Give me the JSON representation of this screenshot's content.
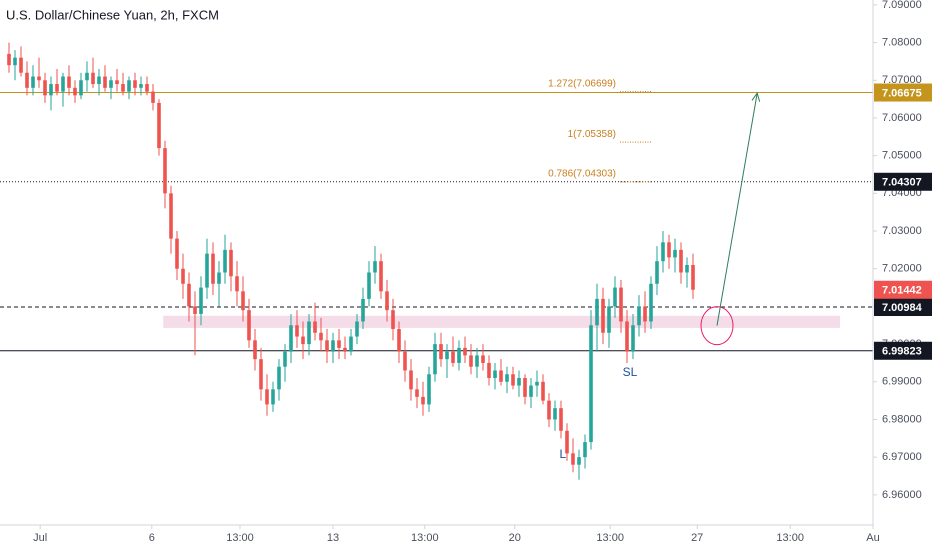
{
  "chart_data": {
    "type": "candlestick",
    "title": "U.S. Dollar/Chinese Yuan, 2h, FXCM",
    "up_color": "#26a69a",
    "down_color": "#ef5350",
    "grid": false,
    "ylim": [
      6.952,
      7.0913
    ],
    "yticks": [
      {
        "value": 7.09,
        "label": "7.09000"
      },
      {
        "value": 7.08,
        "label": "7.08000"
      },
      {
        "value": 7.07,
        "label": "7.07000"
      },
      {
        "value": 7.06,
        "label": "7.06000"
      },
      {
        "value": 7.05,
        "label": "7.05000"
      },
      {
        "value": 7.04,
        "label": "7.04000"
      },
      {
        "value": 7.03,
        "label": "7.03000"
      },
      {
        "value": 7.02,
        "label": "7.02000"
      },
      {
        "value": 7.01,
        "label": "7.01000"
      },
      {
        "value": 7.0,
        "label": "7.00000"
      },
      {
        "value": 6.99,
        "label": "6.99000"
      },
      {
        "value": 6.98,
        "label": "6.98000"
      },
      {
        "value": 6.97,
        "label": "6.97000"
      },
      {
        "value": 6.96,
        "label": "6.96000"
      }
    ],
    "xlim": [
      -1.5,
      144
    ],
    "xticks": [
      {
        "value": 5.2,
        "label": "Jul"
      },
      {
        "value": 23.8,
        "label": "6"
      },
      {
        "value": 38.5,
        "label": "13:00"
      },
      {
        "value": 54,
        "label": "13"
      },
      {
        "value": 69.3,
        "label": "13:00"
      },
      {
        "value": 84.3,
        "label": "20"
      },
      {
        "value": 100.2,
        "label": "13:00"
      },
      {
        "value": 114.7,
        "label": "27"
      },
      {
        "value": 130.2,
        "label": "13:00"
      },
      {
        "value": 144,
        "label": "Au"
      }
    ],
    "ohlc": [
      [
        7.077,
        7.08,
        7.072,
        7.074
      ],
      [
        7.074,
        7.078,
        7.07,
        7.076
      ],
      [
        7.076,
        7.079,
        7.071,
        7.072
      ],
      [
        7.072,
        7.075,
        7.066,
        7.068
      ],
      [
        7.068,
        7.074,
        7.066,
        7.071
      ],
      [
        7.071,
        7.076,
        7.068,
        7.07
      ],
      [
        7.07,
        7.072,
        7.064,
        7.066
      ],
      [
        7.066,
        7.071,
        7.062,
        7.069
      ],
      [
        7.069,
        7.073,
        7.066,
        7.067
      ],
      [
        7.067,
        7.072,
        7.063,
        7.071
      ],
      [
        7.071,
        7.074,
        7.066,
        7.068
      ],
      [
        7.068,
        7.07,
        7.064,
        7.066
      ],
      [
        7.066,
        7.072,
        7.065,
        7.07
      ],
      [
        7.07,
        7.075,
        7.067,
        7.072
      ],
      [
        7.072,
        7.076,
        7.068,
        7.069
      ],
      [
        7.069,
        7.073,
        7.066,
        7.071
      ],
      [
        7.071,
        7.074,
        7.067,
        7.068
      ],
      [
        7.068,
        7.071,
        7.065,
        7.07
      ],
      [
        7.07,
        7.073,
        7.067,
        7.069
      ],
      [
        7.069,
        7.072,
        7.066,
        7.067
      ],
      [
        7.067,
        7.071,
        7.065,
        7.07
      ],
      [
        7.07,
        7.072,
        7.066,
        7.068
      ],
      [
        7.068,
        7.071,
        7.066,
        7.069
      ],
      [
        7.069,
        7.071,
        7.066,
        7.067
      ],
      [
        7.067,
        7.069,
        7.062,
        7.064
      ],
      [
        7.064,
        7.065,
        7.05,
        7.052
      ],
      [
        7.052,
        7.054,
        7.036,
        7.04
      ],
      [
        7.04,
        7.042,
        7.024,
        7.028
      ],
      [
        7.028,
        7.03,
        7.017,
        7.02
      ],
      [
        7.02,
        7.024,
        7.012,
        7.016
      ],
      [
        7.016,
        7.019,
        7.006,
        7.01
      ],
      [
        7.01,
        7.014,
        6.997,
        7.008
      ],
      [
        7.008,
        7.018,
        7.005,
        7.015
      ],
      [
        7.015,
        7.028,
        7.012,
        7.024
      ],
      [
        7.024,
        7.027,
        7.013,
        7.016
      ],
      [
        7.016,
        7.022,
        7.01,
        7.019
      ],
      [
        7.019,
        7.029,
        7.016,
        7.025
      ],
      [
        7.025,
        7.027,
        7.014,
        7.018
      ],
      [
        7.018,
        7.022,
        7.01,
        7.014
      ],
      [
        7.014,
        7.018,
        7.006,
        7.009
      ],
      [
        7.009,
        7.012,
        6.999,
        7.001
      ],
      [
        7.001,
        7.004,
        6.993,
        6.996
      ],
      [
        6.996,
        6.999,
        6.985,
        6.988
      ],
      [
        6.988,
        6.992,
        6.981,
        6.984
      ],
      [
        6.984,
        6.99,
        6.982,
        6.988
      ],
      [
        6.988,
        6.996,
        6.985,
        6.994
      ],
      [
        6.994,
        7.0,
        6.99,
        6.998
      ],
      [
        6.998,
        7.008,
        6.995,
        7.005
      ],
      [
        7.005,
        7.009,
        6.999,
        7.002
      ],
      [
        7.002,
        7.006,
        6.996,
        7.0
      ],
      [
        7.0,
        7.008,
        6.997,
        7.006
      ],
      [
        7.006,
        7.011,
        7.001,
        7.003
      ],
      [
        7.003,
        7.007,
        6.998,
        7.001
      ],
      [
        7.001,
        7.004,
        6.995,
        6.998
      ],
      [
        6.998,
        7.003,
        6.995,
        7.001
      ],
      [
        7.001,
        7.004,
        6.996,
        6.999
      ],
      [
        6.999,
        7.002,
        6.996,
        6.998
      ],
      [
        6.998,
        7.004,
        6.997,
        7.002
      ],
      [
        7.002,
        7.008,
        7.0,
        7.006
      ],
      [
        7.006,
        7.015,
        7.004,
        7.012
      ],
      [
        7.012,
        7.022,
        7.01,
        7.019
      ],
      [
        7.019,
        7.026,
        7.016,
        7.022
      ],
      [
        7.022,
        7.024,
        7.012,
        7.014
      ],
      [
        7.014,
        7.017,
        7.006,
        7.009
      ],
      [
        7.009,
        7.012,
        7.001,
        7.004
      ],
      [
        7.004,
        7.006,
        6.995,
        6.998
      ],
      [
        6.998,
        7.001,
        6.99,
        6.993
      ],
      [
        6.993,
        6.996,
        6.985,
        6.988
      ],
      [
        6.988,
        6.991,
        6.983,
        6.986
      ],
      [
        6.986,
        6.99,
        6.981,
        6.984
      ],
      [
        6.984,
        6.994,
        6.982,
        6.992
      ],
      [
        6.992,
        7.003,
        6.99,
        7.0
      ],
      [
        7.0,
        7.003,
        6.994,
        6.996
      ],
      [
        6.996,
        7.0,
        6.991,
        6.998
      ],
      [
        6.998,
        7.002,
        6.994,
        6.995
      ],
      [
        6.995,
        7.001,
        6.993,
        6.999
      ],
      [
        6.999,
        7.002,
        6.995,
        6.997
      ],
      [
        6.997,
        7.0,
        6.992,
        6.994
      ],
      [
        6.994,
        6.999,
        6.991,
        6.997
      ],
      [
        6.997,
        7.0,
        6.993,
        6.995
      ],
      [
        6.995,
        6.997,
        6.989,
        6.991
      ],
      [
        6.991,
        6.995,
        6.988,
        6.993
      ],
      [
        6.993,
        6.996,
        6.989,
        6.99
      ],
      [
        6.99,
        6.994,
        6.987,
        6.992
      ],
      [
        6.992,
        6.994,
        6.988,
        6.989
      ],
      [
        6.989,
        6.993,
        6.986,
        6.991
      ],
      [
        6.991,
        6.992,
        6.984,
        6.986
      ],
      [
        6.986,
        6.991,
        6.983,
        6.989
      ],
      [
        6.989,
        6.993,
        6.986,
        6.99
      ],
      [
        6.99,
        6.992,
        6.984,
        6.985
      ],
      [
        6.985,
        6.987,
        6.978,
        6.98
      ],
      [
        6.98,
        6.985,
        6.977,
        6.983
      ],
      [
        6.983,
        6.985,
        6.975,
        6.977
      ],
      [
        6.977,
        6.979,
        6.969,
        6.971
      ],
      [
        6.971,
        6.975,
        6.966,
        6.968
      ],
      [
        6.968,
        6.972,
        6.964,
        6.97
      ],
      [
        6.97,
        6.976,
        6.967,
        6.974
      ],
      [
        6.974,
        7.009,
        6.972,
        7.005
      ],
      [
        7.005,
        7.016,
        6.998,
        7.012
      ],
      [
        7.012,
        7.015,
        7.0,
        7.003
      ],
      [
        7.003,
        7.012,
        6.999,
        7.01
      ],
      [
        7.01,
        7.018,
        7.007,
        7.015
      ],
      [
        7.015,
        7.017,
        7.003,
        7.006
      ],
      [
        7.006,
        7.009,
        6.995,
        6.998
      ],
      [
        6.998,
        7.008,
        6.996,
        7.005
      ],
      [
        7.005,
        7.013,
        7.002,
        7.01
      ],
      [
        7.01,
        7.014,
        7.003,
        7.006
      ],
      [
        7.006,
        7.018,
        7.004,
        7.016
      ],
      [
        7.016,
        7.026,
        7.013,
        7.022
      ],
      [
        7.022,
        7.03,
        7.019,
        7.027
      ],
      [
        7.027,
        7.029,
        7.02,
        7.023
      ],
      [
        7.023,
        7.028,
        7.019,
        7.025
      ],
      [
        7.025,
        7.027,
        7.016,
        7.019
      ],
      [
        7.019,
        7.023,
        7.015,
        7.021
      ],
      [
        7.021,
        7.024,
        7.012,
        7.01442
      ]
    ],
    "levels": [
      {
        "value": 7.06675,
        "color": "#c4941c",
        "style": "solid"
      },
      {
        "value": 7.04307,
        "color": "#131722",
        "style": "dotted"
      },
      {
        "value": 7.00984,
        "color": "#131722",
        "style": "dashed"
      },
      {
        "value": 6.99823,
        "color": "#131722",
        "style": "solid"
      }
    ],
    "fib_labels": [
      {
        "label": "1.272(7.06699)",
        "value": 7.06699
      },
      {
        "label": "1(7.05358)",
        "value": 7.05358
      },
      {
        "label": "0.786(7.04303)",
        "value": 7.04303
      }
    ],
    "fib_color": "#c97f1e",
    "zone": {
      "low": 7.0043,
      "high": 7.0075,
      "start": 25.7,
      "end": 138.5,
      "color": "#f2d7e4"
    },
    "arrow": {
      "from": [
        118,
        7.0049
      ],
      "to": [
        124.7,
        7.0666
      ],
      "color": "#2e7d5b",
      "circle_color": "#e91e63"
    },
    "notes": [
      {
        "label": "L",
        "x": 92.3,
        "y": 6.9706
      },
      {
        "label": "SL",
        "x": 103.5,
        "y": 6.9924
      }
    ],
    "note_color": "#1e4f9c"
  }
}
